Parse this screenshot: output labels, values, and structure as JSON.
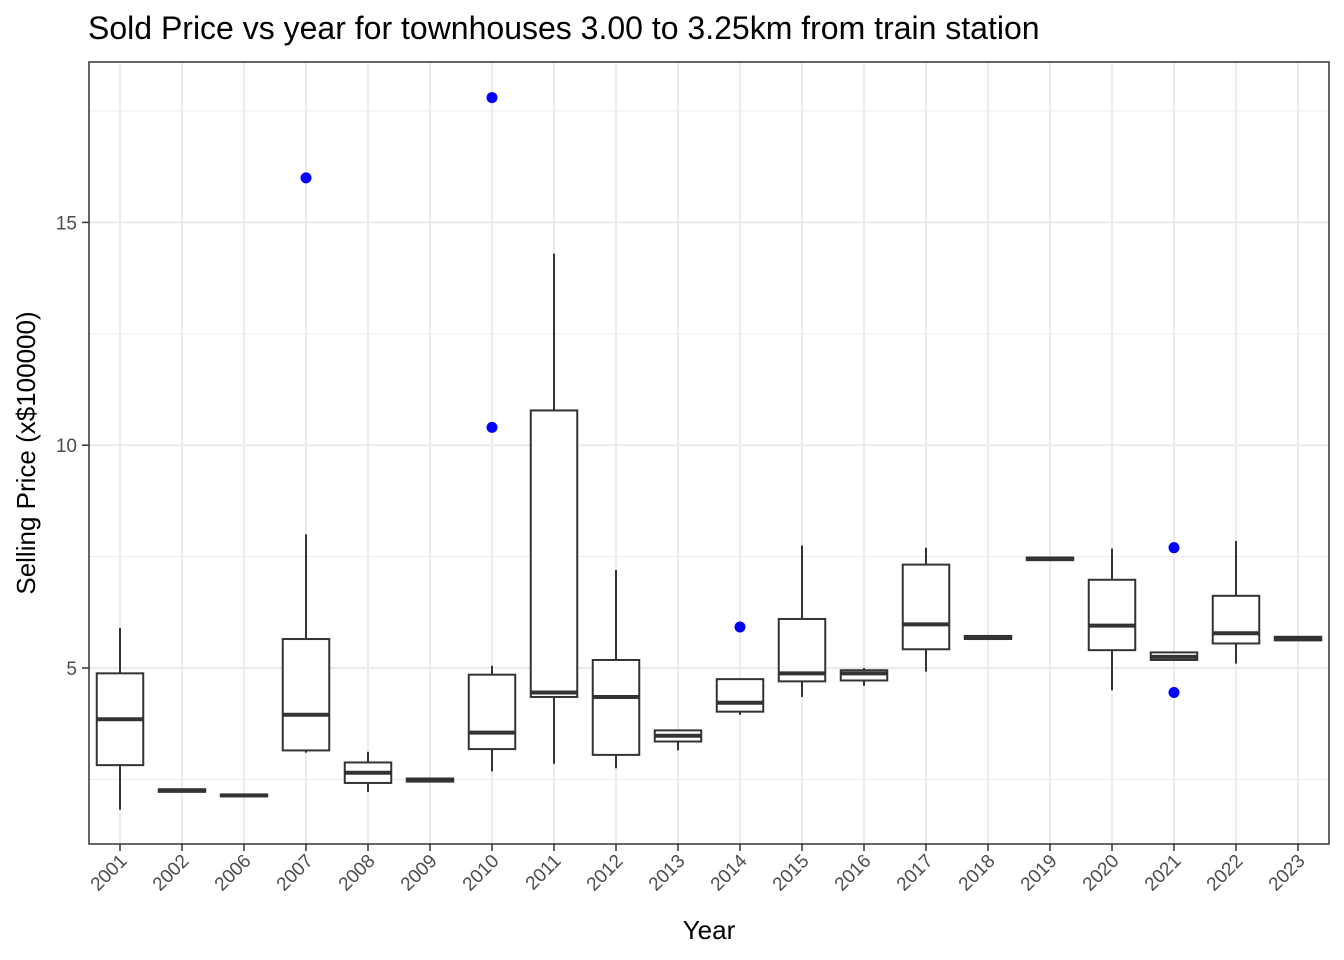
{
  "chart_data": {
    "type": "boxplot",
    "title": "Sold Price vs year for townhouses 3.00 to 3.25km from train station",
    "xlabel": "Year",
    "ylabel": "Selling Price (x$100000)",
    "ylim": [
      1.05,
      18.6
    ],
    "yticks": [
      5,
      10,
      15
    ],
    "grid": true,
    "outlier_color": "#0000ff",
    "box_stroke": "#333333",
    "categories": [
      "2001",
      "2002",
      "2006",
      "2007",
      "2008",
      "2009",
      "2010",
      "2011",
      "2012",
      "2013",
      "2014",
      "2015",
      "2016",
      "2017",
      "2018",
      "2019",
      "2020",
      "2021",
      "2022",
      "2023"
    ],
    "boxes": [
      {
        "x": "2001",
        "lower": 1.82,
        "q1": 2.82,
        "median": 3.85,
        "q3": 4.88,
        "upper": 5.9,
        "outliers": []
      },
      {
        "x": "2002",
        "lower": 2.22,
        "q1": 2.22,
        "median": 2.25,
        "q3": 2.28,
        "upper": 2.28,
        "outliers": []
      },
      {
        "x": "2006",
        "lower": 2.12,
        "q1": 2.12,
        "median": 2.14,
        "q3": 2.16,
        "upper": 2.16,
        "outliers": []
      },
      {
        "x": "2007",
        "lower": 3.1,
        "q1": 3.15,
        "median": 3.95,
        "q3": 5.65,
        "upper": 8.0,
        "outliers": [
          16.0
        ]
      },
      {
        "x": "2008",
        "lower": 2.22,
        "q1": 2.42,
        "median": 2.65,
        "q3": 2.88,
        "upper": 3.12,
        "outliers": []
      },
      {
        "x": "2009",
        "lower": 2.45,
        "q1": 2.45,
        "median": 2.48,
        "q3": 2.52,
        "upper": 2.52,
        "outliers": []
      },
      {
        "x": "2010",
        "lower": 2.68,
        "q1": 3.18,
        "median": 3.55,
        "q3": 4.85,
        "upper": 5.05,
        "outliers": [
          10.4,
          17.8
        ]
      },
      {
        "x": "2011",
        "lower": 2.85,
        "q1": 4.35,
        "median": 4.45,
        "q3": 10.78,
        "upper": 14.3,
        "outliers": []
      },
      {
        "x": "2012",
        "lower": 2.75,
        "q1": 3.05,
        "median": 4.35,
        "q3": 5.18,
        "upper": 7.2,
        "outliers": []
      },
      {
        "x": "2013",
        "lower": 3.15,
        "q1": 3.35,
        "median": 3.48,
        "q3": 3.6,
        "upper": 3.6,
        "outliers": []
      },
      {
        "x": "2014",
        "lower": 3.95,
        "q1": 4.02,
        "median": 4.22,
        "q3": 4.75,
        "upper": 4.75,
        "outliers": [
          5.92
        ]
      },
      {
        "x": "2015",
        "lower": 4.35,
        "q1": 4.7,
        "median": 4.88,
        "q3": 6.1,
        "upper": 7.75,
        "outliers": []
      },
      {
        "x": "2016",
        "lower": 4.6,
        "q1": 4.72,
        "median": 4.88,
        "q3": 4.95,
        "upper": 5.0,
        "outliers": []
      },
      {
        "x": "2017",
        "lower": 4.92,
        "q1": 5.42,
        "median": 5.98,
        "q3": 7.32,
        "upper": 7.7,
        "outliers": []
      },
      {
        "x": "2018",
        "lower": 5.65,
        "q1": 5.65,
        "median": 5.68,
        "q3": 5.72,
        "upper": 5.72,
        "outliers": []
      },
      {
        "x": "2019",
        "lower": 7.42,
        "q1": 7.42,
        "median": 7.45,
        "q3": 7.48,
        "upper": 7.48,
        "outliers": []
      },
      {
        "x": "2020",
        "lower": 4.5,
        "q1": 5.4,
        "median": 5.95,
        "q3": 6.98,
        "upper": 7.68,
        "outliers": []
      },
      {
        "x": "2021",
        "lower": 5.18,
        "q1": 5.18,
        "median": 5.25,
        "q3": 5.35,
        "upper": 5.35,
        "outliers": [
          4.45,
          7.7
        ]
      },
      {
        "x": "2022",
        "lower": 5.1,
        "q1": 5.55,
        "median": 5.78,
        "q3": 6.62,
        "upper": 7.85,
        "outliers": []
      },
      {
        "x": "2023",
        "lower": 5.62,
        "q1": 5.62,
        "median": 5.66,
        "q3": 5.7,
        "upper": 5.7,
        "outliers": []
      }
    ]
  }
}
